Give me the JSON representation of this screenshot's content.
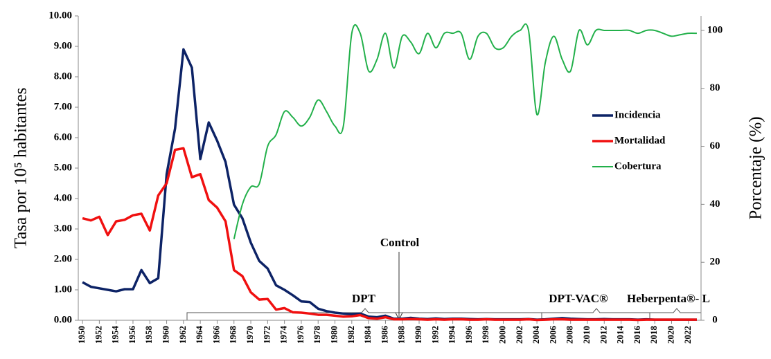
{
  "chart_data": {
    "type": "line",
    "ylabel": "Tasa por 10⁵ habitantes",
    "y2label": "Porcentaje (%)",
    "annotations": [
      "DPT",
      "Control",
      "DPT-VAC®",
      "Heberpenta®- L"
    ],
    "x": [
      1950,
      1951,
      1952,
      1953,
      1954,
      1955,
      1956,
      1957,
      1958,
      1959,
      1960,
      1961,
      1962,
      1963,
      1964,
      1965,
      1966,
      1967,
      1968,
      1969,
      1970,
      1971,
      1972,
      1973,
      1974,
      1975,
      1976,
      1977,
      1978,
      1979,
      1980,
      1981,
      1982,
      1983,
      1984,
      1985,
      1986,
      1987,
      1988,
      1989,
      1990,
      1991,
      1992,
      1993,
      1994,
      1995,
      1996,
      1997,
      1998,
      1999,
      2000,
      2001,
      2002,
      2003,
      2004,
      2005,
      2006,
      2007,
      2008,
      2009,
      2010,
      2011,
      2012,
      2013,
      2014,
      2015,
      2016,
      2017,
      2018,
      2019,
      2020,
      2021,
      2022,
      2023
    ],
    "xlim": [
      1949.5,
      2023.5
    ],
    "xticks": [
      1950,
      1952,
      1954,
      1956,
      1958,
      1960,
      1962,
      1964,
      1966,
      1968,
      1970,
      1972,
      1974,
      1976,
      1978,
      1980,
      1982,
      1984,
      1986,
      1988,
      1990,
      1992,
      1994,
      1996,
      1998,
      2000,
      2002,
      2004,
      2006,
      2008,
      2010,
      2012,
      2014,
      2016,
      2018,
      2020,
      2022
    ],
    "ylim": [
      0,
      10
    ],
    "yticks": [
      {
        "value": 0,
        "label": "0.00"
      },
      {
        "value": 1,
        "label": "1.00"
      },
      {
        "value": 2,
        "label": "2.00"
      },
      {
        "value": 3,
        "label": "3.00"
      },
      {
        "value": 4,
        "label": "4.00"
      },
      {
        "value": 5,
        "label": "5.00"
      },
      {
        "value": 6,
        "label": "6.00"
      },
      {
        "value": 7,
        "label": "7.00"
      },
      {
        "value": 8,
        "label": "8.00"
      },
      {
        "value": 9,
        "label": "9.00"
      },
      {
        "value": 10,
        "label": "10.00"
      }
    ],
    "y2lim": [
      0,
      105
    ],
    "y2ticks": [
      0,
      20,
      40,
      60,
      80,
      100
    ],
    "legend": "right",
    "series": [
      {
        "name": "Incidencia",
        "color": "#0d2366",
        "values": [
          1.25,
          1.1,
          1.05,
          1.0,
          0.95,
          1.02,
          1.02,
          1.65,
          1.22,
          1.38,
          4.8,
          6.3,
          8.9,
          8.3,
          5.3,
          6.5,
          5.9,
          5.2,
          3.8,
          3.35,
          2.55,
          1.95,
          1.7,
          1.15,
          1.0,
          0.82,
          0.62,
          0.6,
          0.38,
          0.3,
          0.25,
          0.22,
          0.2,
          0.22,
          0.12,
          0.1,
          0.15,
          0.05,
          0.05,
          0.08,
          0.05,
          0.04,
          0.06,
          0.04,
          0.05,
          0.05,
          0.04,
          0.03,
          0.04,
          0.03,
          0.03,
          0.03,
          0.03,
          0.04,
          0.02,
          0.03,
          0.05,
          0.07,
          0.05,
          0.04,
          0.03,
          0.03,
          0.04,
          0.03,
          0.03,
          0.03,
          0.02,
          0.03,
          0.02,
          0.02,
          0.02,
          0.02,
          0.02,
          0.02
        ]
      },
      {
        "name": "Mortalidad",
        "color": "#f01010",
        "values": [
          3.35,
          3.28,
          3.4,
          2.8,
          3.25,
          3.3,
          3.45,
          3.5,
          2.95,
          4.1,
          4.5,
          5.6,
          5.65,
          4.7,
          4.8,
          3.95,
          3.7,
          3.25,
          1.65,
          1.45,
          0.92,
          0.68,
          0.7,
          0.35,
          0.4,
          0.26,
          0.25,
          0.22,
          0.18,
          0.18,
          0.15,
          0.12,
          0.13,
          0.17,
          0.07,
          0.05,
          0.1,
          0.03,
          0.03,
          0.04,
          0.03,
          0.02,
          0.03,
          0.02,
          0.03,
          0.03,
          0.02,
          0.02,
          0.03,
          0.02,
          0.02,
          0.02,
          0.02,
          0.03,
          0.01,
          0.02,
          0.03,
          0.03,
          0.02,
          0.02,
          0.02,
          0.02,
          0.02,
          0.02,
          0.02,
          0.02,
          0.01,
          0.02,
          0.02,
          0.02,
          0.02,
          0.02,
          0.02,
          0.02
        ]
      },
      {
        "name": "Cobertura",
        "color": "#22b04a",
        "axis": "y2",
        "values": [
          null,
          null,
          null,
          null,
          null,
          null,
          null,
          null,
          null,
          null,
          null,
          null,
          null,
          null,
          null,
          null,
          null,
          null,
          28,
          40,
          46,
          47,
          60,
          64,
          72,
          70,
          67,
          70,
          76,
          72,
          67,
          67,
          99,
          99,
          86,
          90,
          99,
          87,
          98,
          96,
          92,
          99,
          94,
          99,
          99,
          99,
          90,
          98,
          99,
          94,
          94,
          98,
          100,
          100,
          71,
          89,
          98,
          90,
          86,
          100,
          95,
          100,
          100,
          100,
          100,
          100,
          99,
          100,
          100,
          99,
          98,
          98.5,
          99,
          99
        ]
      }
    ]
  }
}
